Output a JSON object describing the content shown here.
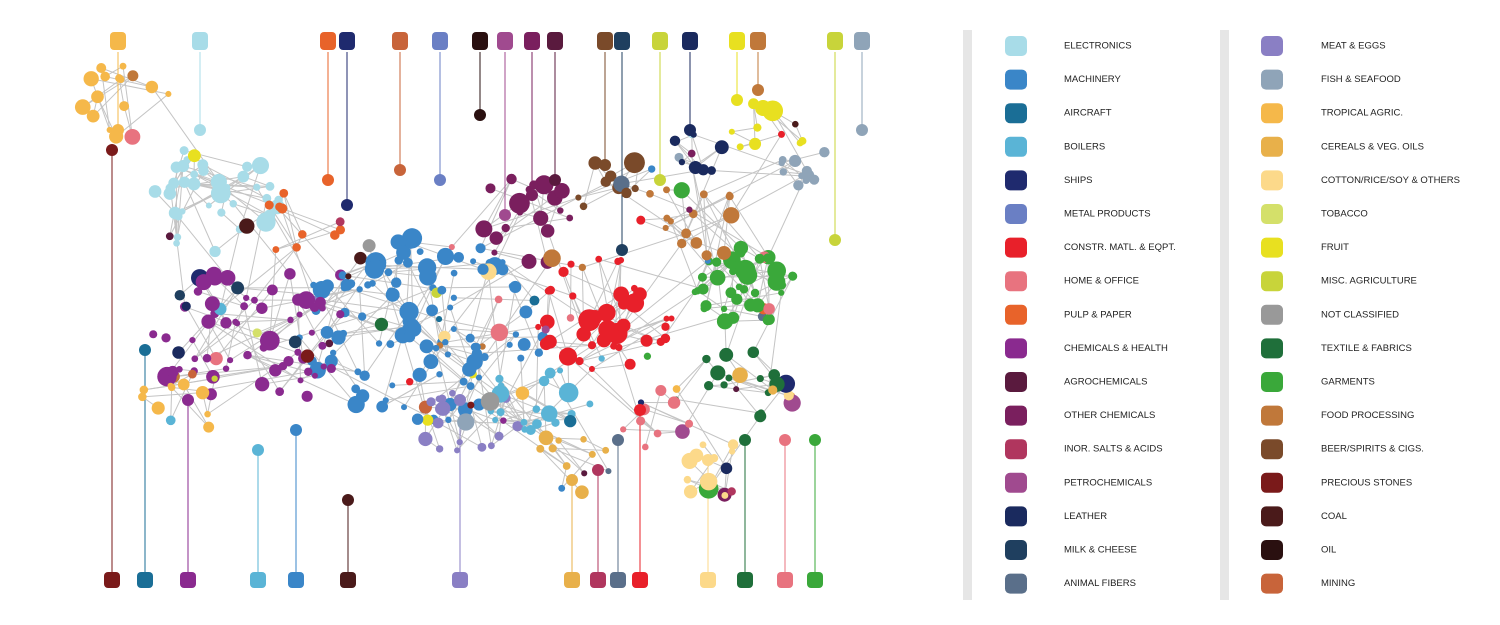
{
  "legend": {
    "items": [
      {
        "label": "ELECTRONICS",
        "color": "#a8dce8"
      },
      {
        "label": "MACHINERY",
        "color": "#3a86c8"
      },
      {
        "label": "AIRCRAFT",
        "color": "#1a6e96"
      },
      {
        "label": "BOILERS",
        "color": "#5ab4d6"
      },
      {
        "label": "SHIPS",
        "color": "#1f2a6e"
      },
      {
        "label": "METAL PRODUCTS",
        "color": "#6a7fc4"
      },
      {
        "label": "CONSTR. MATL. & EQPT.",
        "color": "#e8202a"
      },
      {
        "label": "HOME & OFFICE",
        "color": "#e8737f"
      },
      {
        "label": "PULP & PAPER",
        "color": "#e8632a"
      },
      {
        "label": "CHEMICALS & HEALTH",
        "color": "#8a2a8f"
      },
      {
        "label": "AGROCHEMICALS",
        "color": "#5a1a3e"
      },
      {
        "label": "OTHER CHEMICALS",
        "color": "#7a1f5e"
      },
      {
        "label": "INOR. SALTS & ACIDS",
        "color": "#b0365e"
      },
      {
        "label": "PETROCHEMICALS",
        "color": "#a04a8f"
      },
      {
        "label": "LEATHER",
        "color": "#1a2a5e"
      },
      {
        "label": "MILK & CHEESE",
        "color": "#1f3f5f"
      },
      {
        "label": "ANIMAL FIBERS",
        "color": "#5a6f8a"
      },
      {
        "label": "MEAT & EGGS",
        "color": "#8a7fc4"
      },
      {
        "label": "FISH & SEAFOOD",
        "color": "#8fa4b8"
      },
      {
        "label": "TROPICAL AGRIC.",
        "color": "#f5b84a"
      },
      {
        "label": "CEREALS & VEG. OILS",
        "color": "#e8b04a"
      },
      {
        "label": "COTTON/RICE/SOY & OTHERS",
        "color": "#fcd98a"
      },
      {
        "label": "TOBACCO",
        "color": "#d4e06a"
      },
      {
        "label": "FRUIT",
        "color": "#e8e020"
      },
      {
        "label": "MISC. AGRICULTURE",
        "color": "#c8d43a"
      },
      {
        "label": "NOT CLASSIFIED",
        "color": "#999999"
      },
      {
        "label": "TEXTILE & FABRICS",
        "color": "#1f6f3a"
      },
      {
        "label": "GARMENTS",
        "color": "#3aa83a"
      },
      {
        "label": "FOOD PROCESSING",
        "color": "#c0783a"
      },
      {
        "label": "BEER/SPIRITS & CIGS.",
        "color": "#7a4a2a"
      },
      {
        "label": "PRECIOUS STONES",
        "color": "#7a1a1a"
      },
      {
        "label": "COAL",
        "color": "#4a1a1a"
      },
      {
        "label": "OIL",
        "color": "#2a1010"
      },
      {
        "label": "MINING",
        "color": "#c8643a"
      }
    ]
  }
}
